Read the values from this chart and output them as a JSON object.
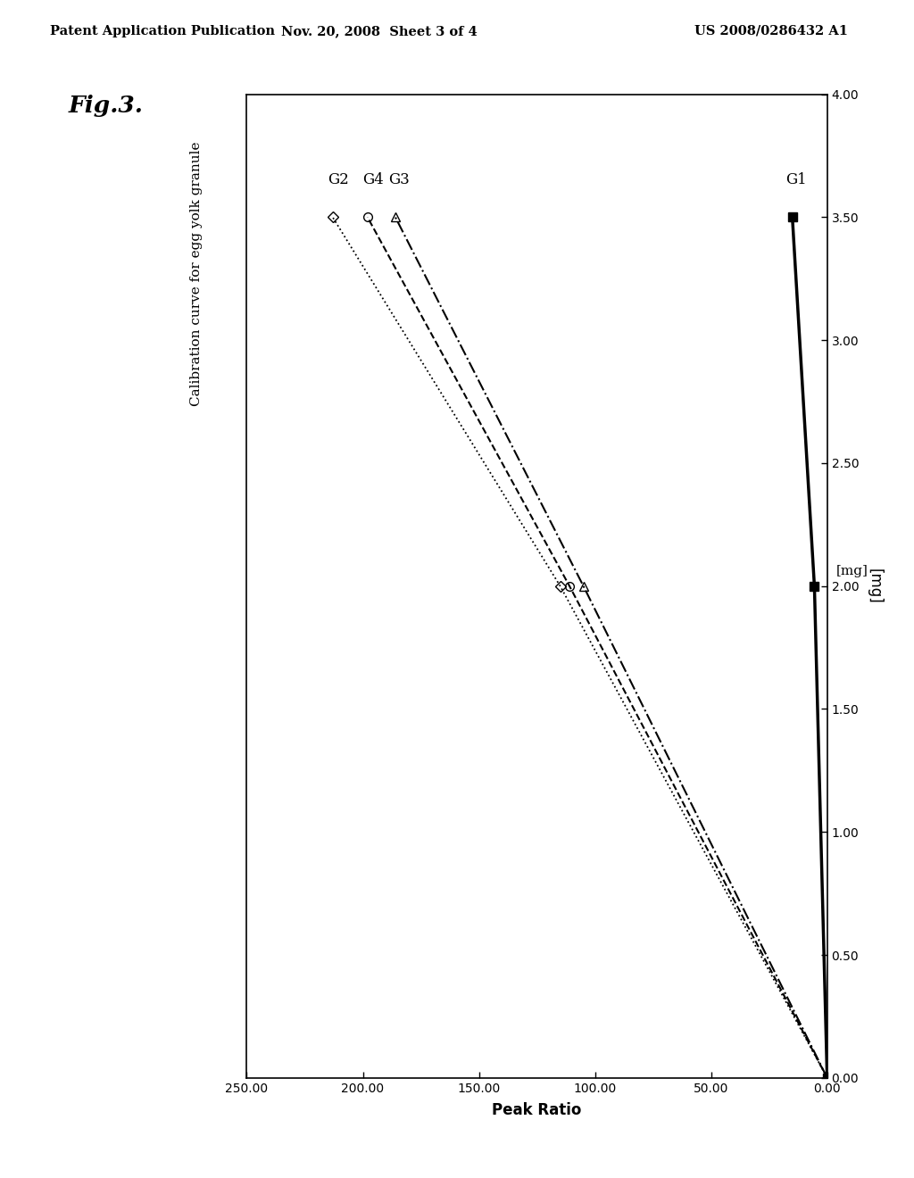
{
  "header_left": "Patent Application Publication",
  "header_mid": "Nov. 20, 2008  Sheet 3 of 4",
  "header_right": "US 2008/0286432 A1",
  "fig_label": "Fig.3.",
  "subtitle": "Calibration curve for egg yolk granule",
  "xlabel": "Peak Ratio",
  "ylabel": "[mg]",
  "pr_min": 0.0,
  "pr_max": 250.0,
  "pr_ticks": [
    0.0,
    50.0,
    100.0,
    150.0,
    200.0,
    250.0
  ],
  "mg_min": 0.0,
  "mg_max": 4.0,
  "mg_ticks": [
    0.0,
    0.5,
    1.0,
    1.5,
    2.0,
    2.5,
    3.0,
    3.5,
    4.0
  ],
  "G1_mg": [
    0.0,
    2.0,
    3.5
  ],
  "G1_pr": [
    0.0,
    5.5,
    15.0
  ],
  "G2_mg": [
    0.0,
    2.0,
    3.5
  ],
  "G2_pr": [
    0.0,
    115.0,
    213.0
  ],
  "G3_mg": [
    0.0,
    2.0,
    3.5
  ],
  "G3_pr": [
    0.0,
    105.0,
    186.0
  ],
  "G4_mg": [
    0.0,
    2.0,
    3.5
  ],
  "G4_pr": [
    0.0,
    111.0,
    198.0
  ],
  "background": "#ffffff"
}
